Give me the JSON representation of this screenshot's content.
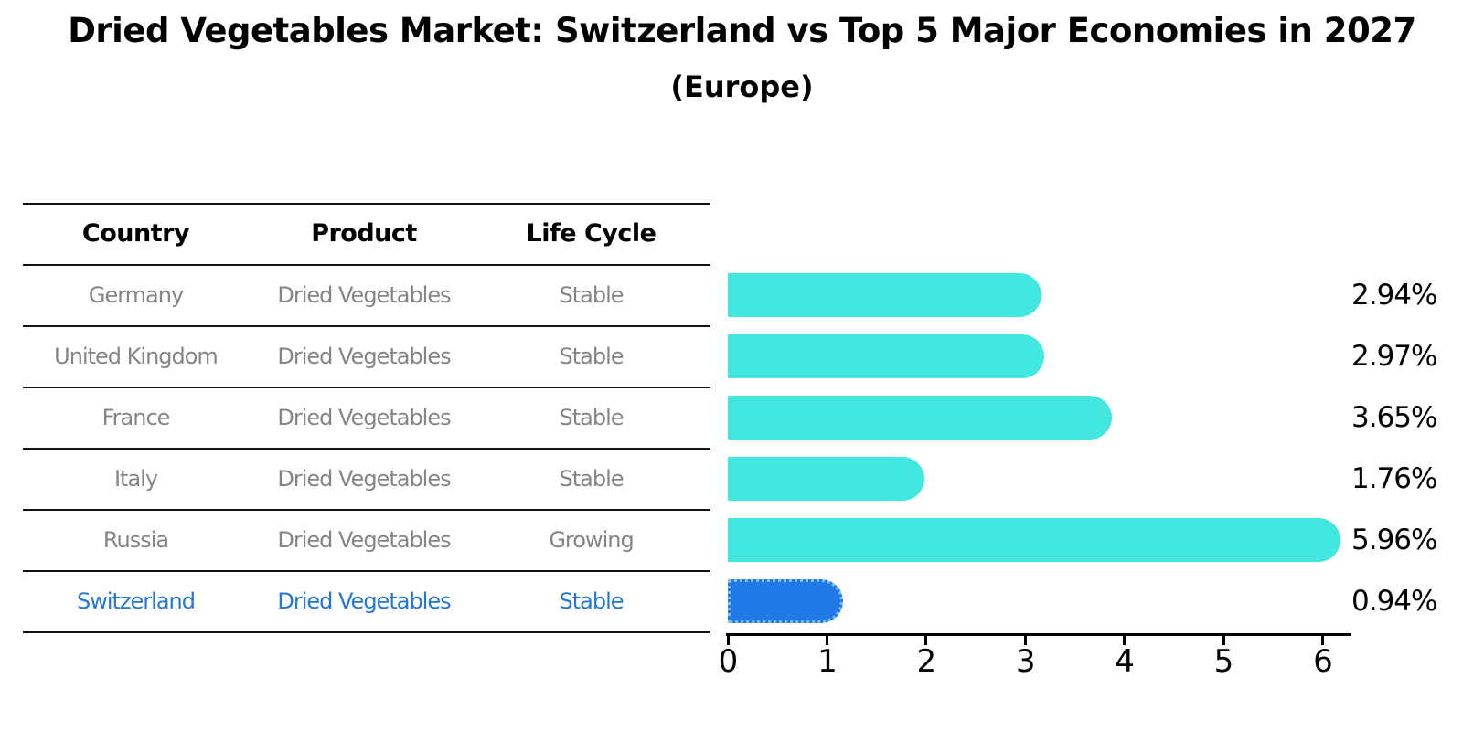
{
  "title": "Dried Vegetables Market: Switzerland vs Top 5 Major Economies in 2027",
  "subtitle": "(Europe)",
  "table": {
    "headers": [
      "Country",
      "Product",
      "Life Cycle"
    ],
    "rows": [
      {
        "country": "Germany",
        "product": "Dried Vegetables",
        "life_cycle": "Stable",
        "highlight": false
      },
      {
        "country": "United Kingdom",
        "product": "Dried Vegetables",
        "life_cycle": "Stable",
        "highlight": false
      },
      {
        "country": "France",
        "product": "Dried Vegetables",
        "life_cycle": "Stable",
        "highlight": false
      },
      {
        "country": "Italy",
        "product": "Dried Vegetables",
        "life_cycle": "Stable",
        "highlight": false
      },
      {
        "country": "Russia",
        "product": "Dried Vegetables",
        "life_cycle": "Growing",
        "highlight": false
      },
      {
        "country": "Switzerland",
        "product": "Dried Vegetables",
        "life_cycle": "Stable",
        "highlight": true
      }
    ]
  },
  "chart_data": {
    "type": "bar",
    "orientation": "horizontal",
    "categories": [
      "Germany",
      "United Kingdom",
      "France",
      "Italy",
      "Russia",
      "Switzerland"
    ],
    "values": [
      2.94,
      2.97,
      3.65,
      1.76,
      5.96,
      0.94
    ],
    "value_labels": [
      "2.94%",
      "2.97%",
      "3.65%",
      "1.76%",
      "5.96%",
      "0.94%"
    ],
    "xlabel": "",
    "ylabel": "",
    "xlim": [
      0,
      6.3
    ],
    "xticks": [
      0,
      1,
      2,
      3,
      4,
      5,
      6
    ],
    "grid": false,
    "legend": "none",
    "highlight_category": "Switzerland",
    "colors": {
      "bar": "#42e8e0",
      "highlight_bar": "#2079e5",
      "highlight_border": "#7fc0f0",
      "highlight_text": "#2277d8",
      "row_text": "#858585",
      "header_text": "#000000",
      "axis": "#000000"
    }
  }
}
